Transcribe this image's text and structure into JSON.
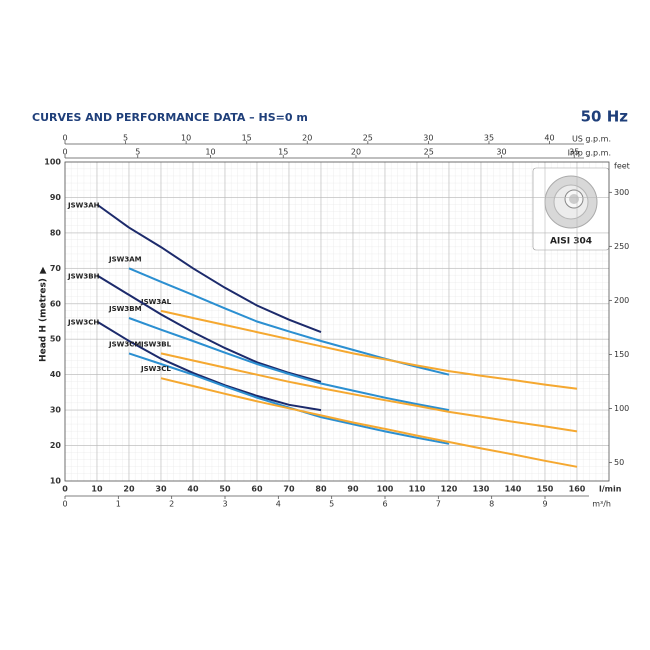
{
  "chart_data": {
    "type": "line",
    "title": "CURVES AND PERFORMANCE DATA – HS=0 m",
    "frequency": "50 Hz",
    "y_label": "Head H (metres)",
    "x_label": "l/min",
    "image_label": "AISI 304",
    "x": [
      10,
      20,
      30,
      40,
      50,
      60,
      70,
      80,
      90,
      100,
      110,
      120,
      130,
      140,
      150,
      160
    ],
    "xlim": [
      0,
      170
    ],
    "xticks": [
      0,
      10,
      20,
      30,
      40,
      50,
      60,
      70,
      80,
      90,
      100,
      110,
      120,
      130,
      140,
      150,
      160
    ],
    "ylim": [
      10,
      100
    ],
    "yticks": [
      10,
      20,
      30,
      40,
      50,
      60,
      70,
      80,
      90,
      100
    ],
    "grid": true,
    "top_axes": [
      {
        "label": "US g.p.m.",
        "xlim": [
          0,
          44.91
        ],
        "xticks": [
          0,
          5,
          10,
          15,
          20,
          25,
          30,
          35,
          40
        ]
      },
      {
        "label": "Imp g.p.m.",
        "xlim": [
          0,
          37.39
        ],
        "xticks": [
          0,
          5,
          10,
          15,
          20,
          25,
          30,
          35
        ]
      }
    ],
    "bottom_axis2": {
      "label": "m³/h",
      "xlim": [
        0,
        10.2
      ],
      "xticks": [
        0,
        1,
        2,
        3,
        4,
        5,
        6,
        7,
        8,
        9
      ]
    },
    "right_axis": {
      "label": "feet",
      "ylim": [
        32.81,
        328.08
      ],
      "yticks": [
        50,
        100,
        150,
        200,
        250,
        300
      ]
    },
    "series": [
      {
        "name": "JSW3AH",
        "color": "#1c2a6b",
        "values": [
          88,
          81.5,
          76,
          70,
          64.5,
          59.5,
          55.5,
          52,
          null,
          null,
          null,
          null,
          null,
          null,
          null,
          null
        ]
      },
      {
        "name": "JSW3AM",
        "color": "#2b8fd1",
        "values": [
          null,
          70,
          66.2,
          62.5,
          58.7,
          55,
          52.2,
          49.5,
          47,
          44.5,
          42.2,
          40,
          null,
          null,
          null,
          null
        ]
      },
      {
        "name": "JSW3AL",
        "color": "#f5a830",
        "values": [
          null,
          null,
          58,
          56,
          54,
          52,
          50,
          48,
          46,
          44.3,
          42.6,
          41,
          39.7,
          38.5,
          37.2,
          36
        ]
      },
      {
        "name": "JSW3BH",
        "color": "#1c2a6b",
        "values": [
          68,
          62.5,
          57,
          52,
          47.5,
          43.5,
          40.5,
          38,
          null,
          null,
          null,
          null,
          null,
          null,
          null,
          null
        ]
      },
      {
        "name": "JSW3BM",
        "color": "#2b8fd1",
        "values": [
          null,
          56,
          52.7,
          49.5,
          46.2,
          43,
          40.2,
          37.5,
          35.5,
          33.5,
          31.7,
          30,
          null,
          null,
          null,
          null
        ]
      },
      {
        "name": "JSW3BL",
        "color": "#f5a830",
        "values": [
          null,
          null,
          46,
          44,
          42,
          40,
          38,
          36.2,
          34.5,
          32.8,
          31.2,
          29.5,
          28.1,
          26.7,
          25.4,
          24
        ]
      },
      {
        "name": "JSW3CH",
        "color": "#1c2a6b",
        "values": [
          55,
          49.5,
          44.5,
          40.5,
          37,
          34,
          31.5,
          30,
          null,
          null,
          null,
          null,
          null,
          null,
          null,
          null
        ]
      },
      {
        "name": "JSW3CM",
        "color": "#2b8fd1",
        "values": [
          null,
          46,
          43,
          40,
          36.7,
          33.5,
          30.7,
          28,
          26,
          24,
          22.2,
          20.5,
          null,
          null,
          null,
          null
        ]
      },
      {
        "name": "JSW3CL",
        "color": "#f5a830",
        "values": [
          null,
          null,
          39,
          36.8,
          34.6,
          32.5,
          30.5,
          28.5,
          26.5,
          24.7,
          22.8,
          21,
          19.2,
          17.5,
          15.7,
          14
        ]
      }
    ]
  }
}
